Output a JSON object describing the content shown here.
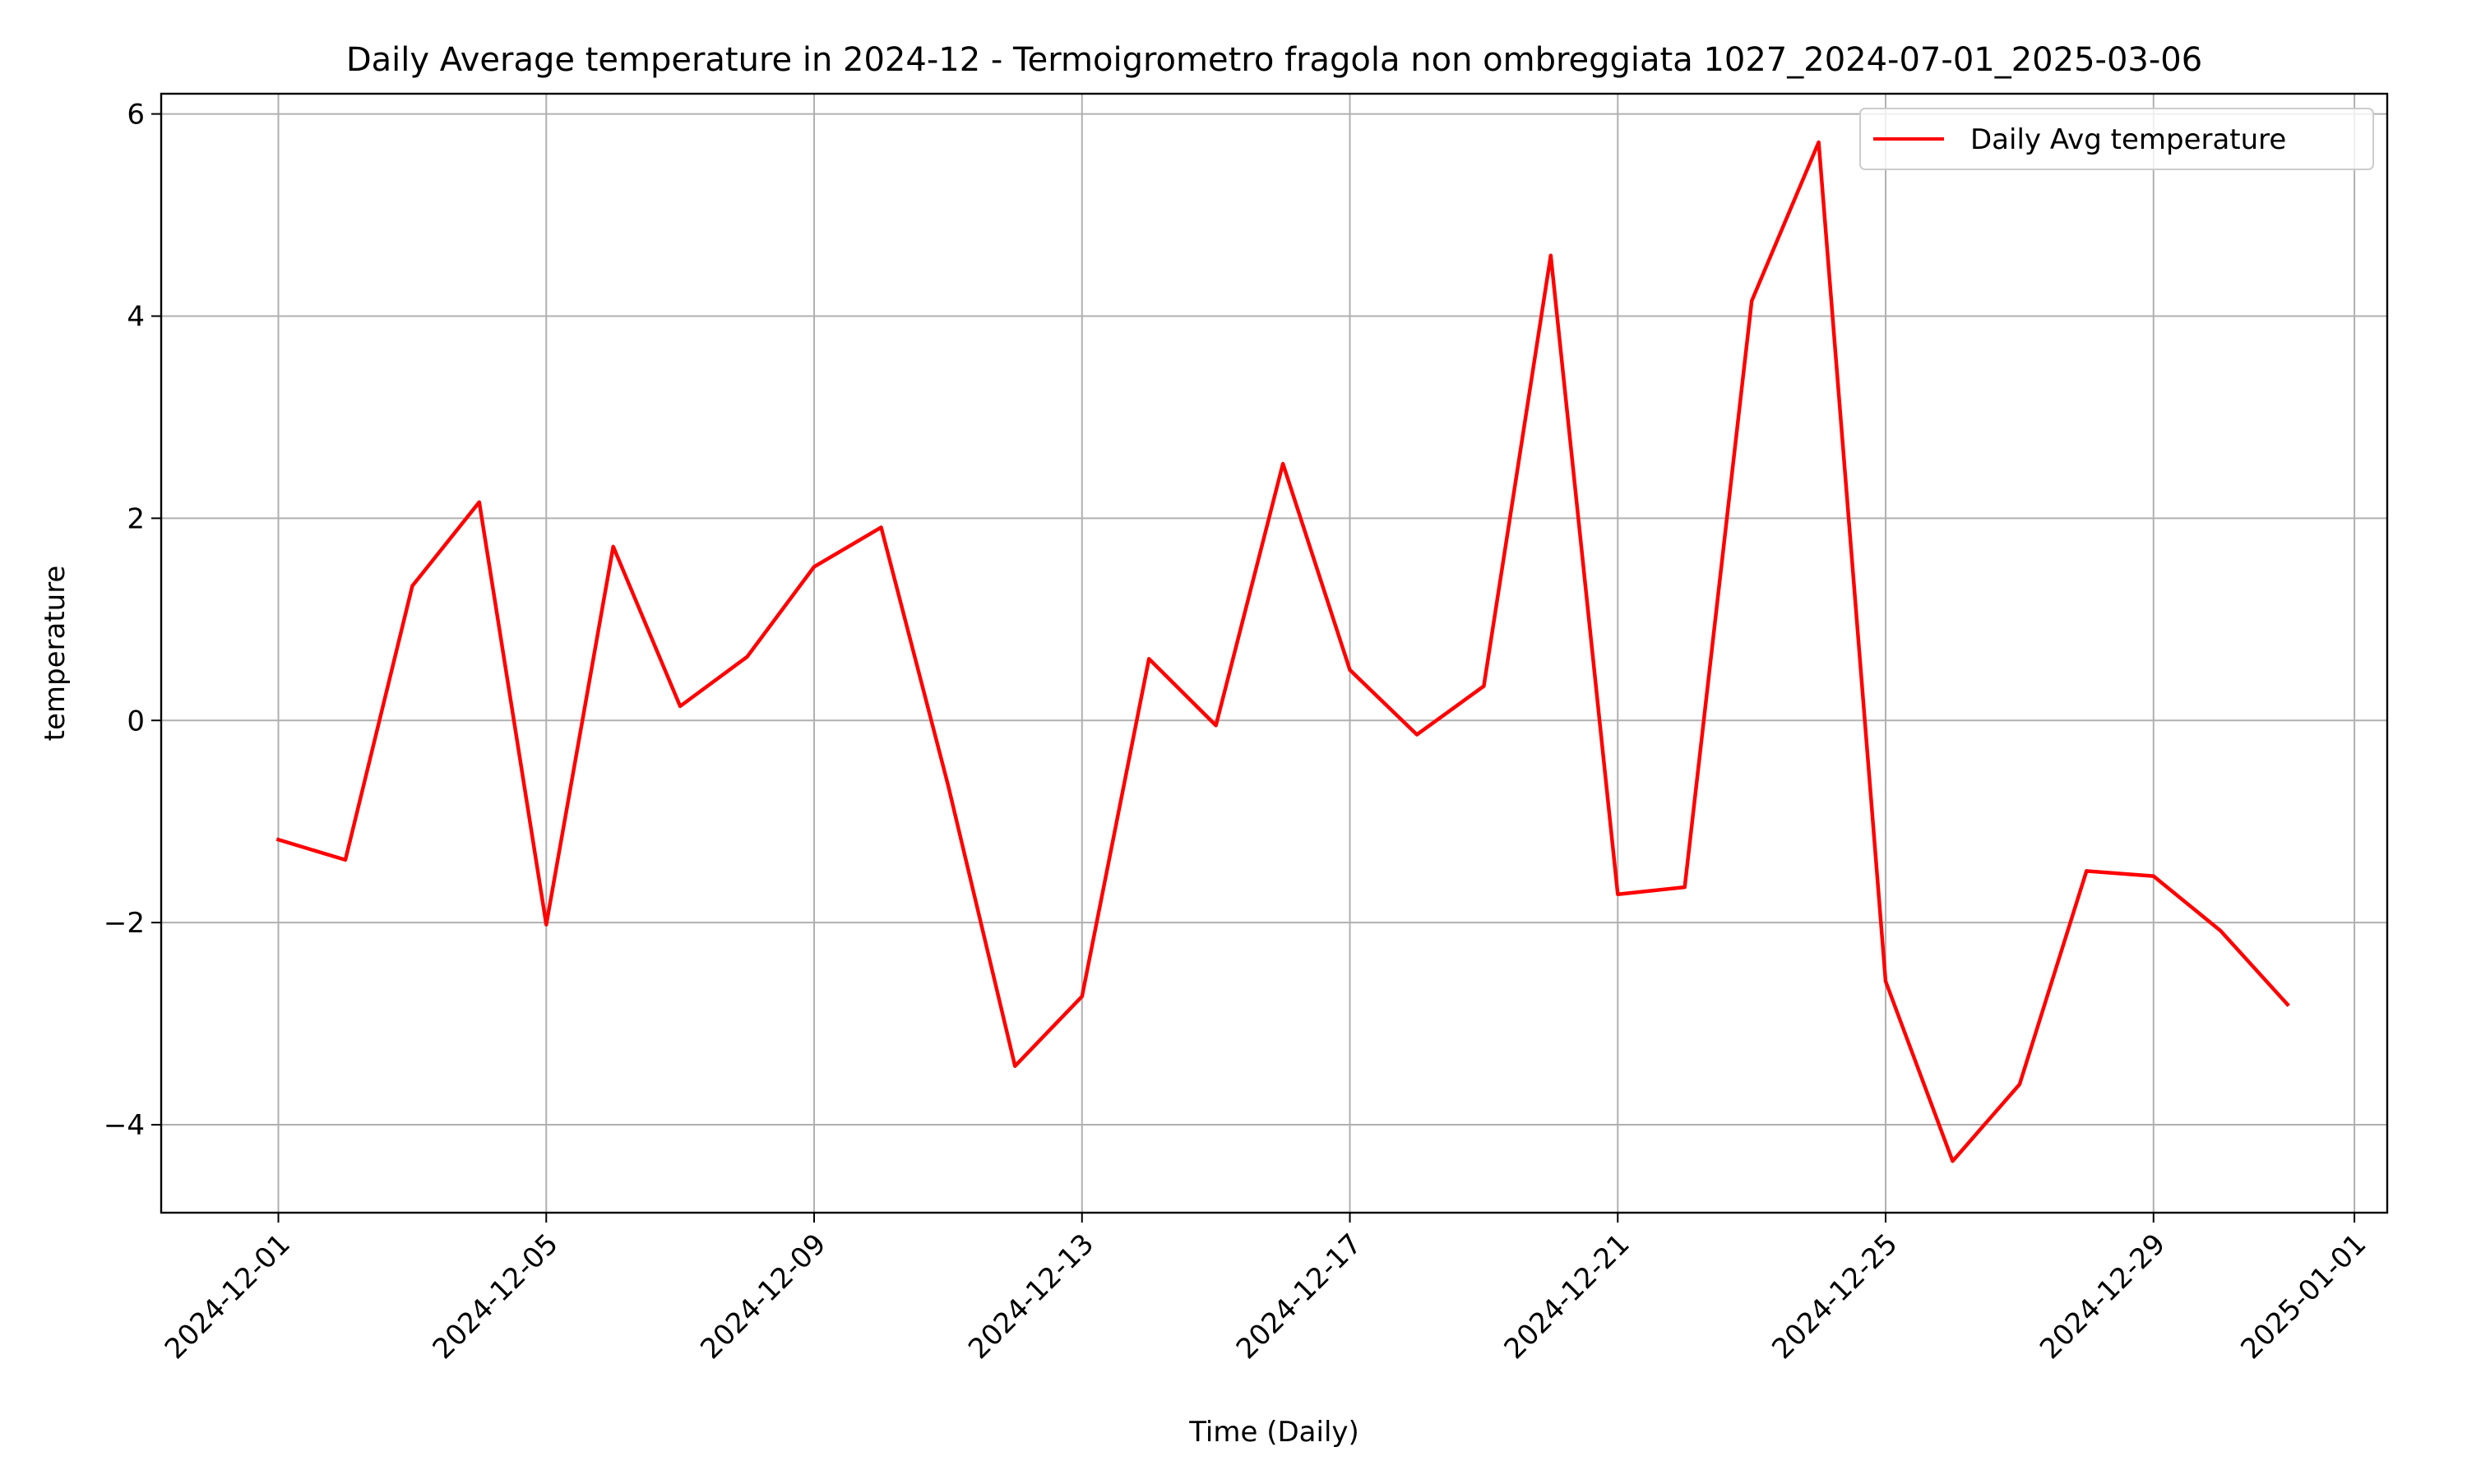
{
  "chart_data": {
    "type": "line",
    "title": "Daily Average temperature in 2024-12 - Termoigrometro fragola non ombreggiata 1027_2024-07-01_2025-03-06",
    "xlabel": "Time (Daily)",
    "ylabel": "temperature",
    "xlim": [
      "2024-11-29",
      "2025-01-01"
    ],
    "ylim": [
      -4.87,
      6.2
    ],
    "grid": true,
    "legend_position": "top-right",
    "x_ticks": [
      "2024-12-01",
      "2024-12-05",
      "2024-12-09",
      "2024-12-13",
      "2024-12-17",
      "2024-12-21",
      "2024-12-25",
      "2024-12-29",
      "2025-01-01"
    ],
    "y_ticks": [
      -4,
      -2,
      0,
      2,
      4,
      6
    ],
    "series": [
      {
        "name": "Daily Avg temperature",
        "color": "#ff0000",
        "x": [
          "2024-12-01",
          "2024-12-02",
          "2024-12-03",
          "2024-12-04",
          "2024-12-05",
          "2024-12-06",
          "2024-12-07",
          "2024-12-08",
          "2024-12-09",
          "2024-12-10",
          "2024-12-11",
          "2024-12-12",
          "2024-12-13",
          "2024-12-14",
          "2024-12-15",
          "2024-12-16",
          "2024-12-17",
          "2024-12-18",
          "2024-12-19",
          "2024-12-20",
          "2024-12-21",
          "2024-12-22",
          "2024-12-23",
          "2024-12-24",
          "2024-12-25",
          "2024-12-26",
          "2024-12-27",
          "2024-12-28",
          "2024-12-29",
          "2024-12-30",
          "2024-12-31"
        ],
        "values": [
          -1.18,
          -1.38,
          1.33,
          2.16,
          -2.02,
          1.72,
          0.14,
          0.63,
          1.52,
          1.91,
          -0.64,
          -3.42,
          -2.73,
          0.61,
          -0.05,
          2.54,
          0.5,
          -0.14,
          0.34,
          4.6,
          -1.72,
          -1.65,
          4.15,
          5.72,
          -2.58,
          -4.36,
          -3.6,
          -1.49,
          -1.54,
          -2.08,
          -2.81
        ]
      }
    ]
  }
}
